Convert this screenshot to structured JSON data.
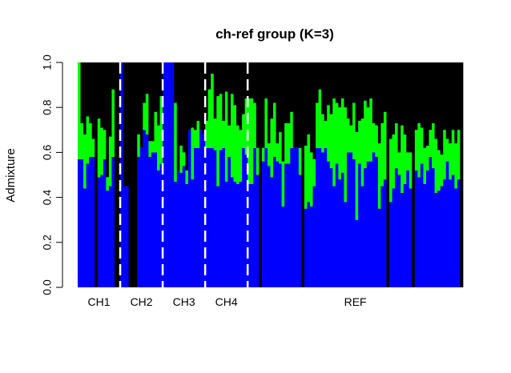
{
  "chart_data": {
    "type": "bar",
    "stacked": true,
    "title": "ch-ref group (K=3)",
    "xlabel": "",
    "ylabel": "Admixture",
    "ylim": [
      0,
      1
    ],
    "yticks": [
      "0.0",
      "0.2",
      "0.4",
      "0.6",
      "0.8",
      "1.0"
    ],
    "group_labels": [
      "CH1",
      "CH2",
      "CH3",
      "CH4",
      "REF"
    ],
    "colors": {
      "blue": "#0000ff",
      "green": "#00ff00",
      "black": "#000000",
      "separator": "#ffffff"
    },
    "groups": [
      {
        "name": "CH1",
        "blue": [
          0.57,
          0.57,
          0.44,
          0.55,
          0.58,
          0.58,
          0.0,
          0.49,
          0.5,
          0.57,
          0.43,
          0.45,
          0.58,
          0.0,
          0.0
        ],
        "green": [
          0.43,
          0.16,
          0.24,
          0.21,
          0.15,
          0.08,
          0.0,
          0.26,
          0.21,
          0.13,
          0.06,
          0.22,
          0.3,
          0.0,
          0.0
        ]
      },
      {
        "name": "CH2",
        "blue": [
          1.0,
          0.45,
          0.45,
          0.0,
          0.0,
          0.0,
          0.58,
          0.62,
          0.7,
          0.68,
          0.58,
          0.6,
          0.6,
          0.52,
          0.55
        ],
        "green": [
          0.0,
          0.0,
          0.0,
          0.0,
          0.0,
          0.0,
          0.1,
          0.0,
          0.12,
          0.18,
          0.07,
          0.05,
          0.18,
          0.2,
          0.3
        ]
      },
      {
        "name": "CH3",
        "blue": [
          1.0,
          1.0,
          1.0,
          1.0,
          0.47,
          0.52,
          0.51,
          0.54,
          0.46,
          0.7,
          0.48,
          0.62,
          0.62,
          0.7,
          0.68
        ],
        "green": [
          0.0,
          0.0,
          0.0,
          0.0,
          0.35,
          0.0,
          0.12,
          0.06,
          0.06,
          0.0,
          0.23,
          0.08,
          0.12,
          0.0,
          0.0
        ]
      },
      {
        "name": "CH4",
        "blue": [
          0.62,
          0.62,
          0.62,
          0.61,
          0.45,
          0.61,
          0.62,
          0.47,
          0.58,
          0.49,
          0.47,
          0.46,
          0.47,
          0.62,
          0.59
        ],
        "green": [
          0.12,
          0.26,
          0.33,
          0.14,
          0.4,
          0.25,
          0.12,
          0.4,
          0.14,
          0.37,
          0.34,
          0.26,
          0.23,
          0.15,
          0.25
        ]
      },
      {
        "name": "REF",
        "blue": [
          0.46,
          0.46,
          0.62,
          0.5,
          0.0,
          0.56,
          0.62,
          0.54,
          0.49,
          0.58,
          0.56,
          0.55,
          0.36,
          0.55,
          0.55,
          0.62,
          0.62,
          0.62,
          0.5,
          0.0,
          0.35,
          0.38,
          0.36,
          0.45,
          0.62,
          0.62,
          0.6,
          0.62,
          0.56,
          0.53,
          0.45,
          0.55,
          0.48,
          0.51,
          0.38,
          0.6,
          0.6,
          0.57,
          0.3,
          0.55,
          0.45,
          0.53,
          0.56,
          0.56,
          0.6,
          0.58,
          0.35,
          0.45,
          0.48,
          0.0,
          0.38,
          0.44,
          0.53,
          0.5,
          0.42,
          0.46,
          0.52,
          0.44,
          0.0,
          0.52,
          0.49,
          0.55,
          0.46,
          0.52,
          0.58,
          0.53,
          0.42,
          0.43,
          0.45,
          0.48,
          0.56,
          0.48,
          0.5,
          0.44,
          0.48,
          0.0
        ],
        "green": [
          0.38,
          0.38,
          0.2,
          0.12,
          0.0,
          0.06,
          0.22,
          0.1,
          0.26,
          0.24,
          0.08,
          0.14,
          0.2,
          0.18,
          0.18,
          0.16,
          0.0,
          0.0,
          0.12,
          0.0,
          0.28,
          0.3,
          0.24,
          0.12,
          0.2,
          0.26,
          0.17,
          0.12,
          0.25,
          0.24,
          0.39,
          0.27,
          0.32,
          0.33,
          0.42,
          0.15,
          0.12,
          0.25,
          0.39,
          0.19,
          0.3,
          0.3,
          0.24,
          0.28,
          0.13,
          0.14,
          0.29,
          0.28,
          0.3,
          0.0,
          0.28,
          0.24,
          0.2,
          0.1,
          0.3,
          0.22,
          0.08,
          0.16,
          0.0,
          0.18,
          0.24,
          0.16,
          0.16,
          0.11,
          0.12,
          0.2,
          0.24,
          0.18,
          0.14,
          0.22,
          0.1,
          0.16,
          0.2,
          0.2,
          0.22,
          0.0
        ]
      }
    ]
  }
}
